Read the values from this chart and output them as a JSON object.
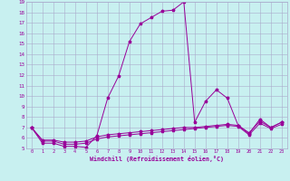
{
  "xlabel": "Windchill (Refroidissement éolien,°C)",
  "xlim": [
    -0.5,
    23.5
  ],
  "ylim": [
    5,
    19
  ],
  "yticks": [
    5,
    6,
    7,
    8,
    9,
    10,
    11,
    12,
    13,
    14,
    15,
    16,
    17,
    18,
    19
  ],
  "xticks": [
    0,
    1,
    2,
    3,
    4,
    5,
    6,
    7,
    8,
    9,
    10,
    11,
    12,
    13,
    14,
    15,
    16,
    17,
    18,
    19,
    20,
    21,
    22,
    23
  ],
  "background_color": "#c8f0f0",
  "line_color": "#990099",
  "grid_color": "#aaaacc",
  "series1": [
    [
      0,
      7.0
    ],
    [
      1,
      5.5
    ],
    [
      2,
      5.5
    ],
    [
      3,
      5.2
    ],
    [
      4,
      5.2
    ],
    [
      5,
      5.1
    ],
    [
      6,
      6.2
    ],
    [
      7,
      9.8
    ],
    [
      8,
      11.9
    ],
    [
      9,
      15.2
    ],
    [
      10,
      16.9
    ],
    [
      11,
      17.5
    ],
    [
      12,
      18.1
    ],
    [
      13,
      18.2
    ],
    [
      14,
      19.0
    ],
    [
      15,
      7.5
    ],
    [
      16,
      9.5
    ],
    [
      17,
      10.6
    ],
    [
      18,
      9.8
    ],
    [
      19,
      7.2
    ],
    [
      20,
      6.4
    ],
    [
      21,
      7.8
    ],
    [
      22,
      7.0
    ],
    [
      23,
      7.5
    ]
  ],
  "series2": [
    [
      0,
      7.0
    ],
    [
      1,
      5.8
    ],
    [
      2,
      5.8
    ],
    [
      3,
      5.6
    ],
    [
      4,
      5.6
    ],
    [
      5,
      5.7
    ],
    [
      6,
      6.1
    ],
    [
      7,
      6.3
    ],
    [
      8,
      6.4
    ],
    [
      9,
      6.5
    ],
    [
      10,
      6.6
    ],
    [
      11,
      6.7
    ],
    [
      12,
      6.8
    ],
    [
      13,
      6.9
    ],
    [
      14,
      7.0
    ],
    [
      15,
      7.0
    ],
    [
      16,
      7.1
    ],
    [
      17,
      7.2
    ],
    [
      18,
      7.3
    ],
    [
      19,
      7.2
    ],
    [
      20,
      6.5
    ],
    [
      21,
      7.6
    ],
    [
      22,
      7.0
    ],
    [
      23,
      7.5
    ]
  ],
  "series3": [
    [
      0,
      7.0
    ],
    [
      1,
      5.7
    ],
    [
      2,
      5.7
    ],
    [
      3,
      5.4
    ],
    [
      4,
      5.4
    ],
    [
      5,
      5.5
    ],
    [
      6,
      5.9
    ],
    [
      7,
      6.1
    ],
    [
      8,
      6.2
    ],
    [
      9,
      6.3
    ],
    [
      10,
      6.4
    ],
    [
      11,
      6.5
    ],
    [
      12,
      6.6
    ],
    [
      13,
      6.7
    ],
    [
      14,
      6.8
    ],
    [
      15,
      6.9
    ],
    [
      16,
      7.0
    ],
    [
      17,
      7.1
    ],
    [
      18,
      7.2
    ],
    [
      19,
      7.1
    ],
    [
      20,
      6.3
    ],
    [
      21,
      7.4
    ],
    [
      22,
      6.9
    ],
    [
      23,
      7.3
    ]
  ]
}
